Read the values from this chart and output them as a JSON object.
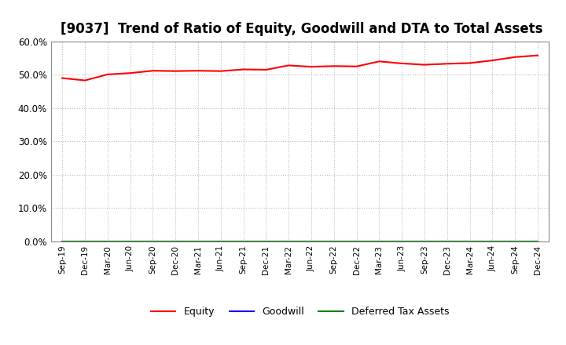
{
  "title": "[9037]  Trend of Ratio of Equity, Goodwill and DTA to Total Assets",
  "x_labels": [
    "Sep-19",
    "Dec-19",
    "Mar-20",
    "Jun-20",
    "Sep-20",
    "Dec-20",
    "Mar-21",
    "Jun-21",
    "Sep-21",
    "Dec-21",
    "Mar-22",
    "Jun-22",
    "Sep-22",
    "Dec-22",
    "Mar-23",
    "Jun-23",
    "Sep-23",
    "Dec-23",
    "Mar-24",
    "Jun-24",
    "Sep-24",
    "Dec-24"
  ],
  "equity": [
    49.0,
    48.3,
    50.1,
    50.5,
    51.2,
    51.1,
    51.2,
    51.1,
    51.6,
    51.5,
    52.8,
    52.4,
    52.6,
    52.5,
    54.0,
    53.4,
    53.0,
    53.3,
    53.5,
    54.3,
    55.3,
    55.8
  ],
  "goodwill": [
    0.0,
    0.0,
    0.0,
    0.0,
    0.0,
    0.0,
    0.0,
    0.0,
    0.0,
    0.0,
    0.0,
    0.0,
    0.0,
    0.0,
    0.0,
    0.0,
    0.0,
    0.0,
    0.0,
    0.0,
    0.0,
    0.0
  ],
  "dta": [
    0.0,
    0.0,
    0.0,
    0.0,
    0.0,
    0.0,
    0.0,
    0.0,
    0.0,
    0.0,
    0.0,
    0.0,
    0.0,
    0.0,
    0.0,
    0.0,
    0.0,
    0.0,
    0.0,
    0.0,
    0.0,
    0.0
  ],
  "equity_color": "#FF0000",
  "goodwill_color": "#0000FF",
  "dta_color": "#008000",
  "ylim": [
    0,
    60
  ],
  "yticks": [
    0,
    10,
    20,
    30,
    40,
    50,
    60
  ],
  "ytick_labels": [
    "0.0%",
    "10.0%",
    "20.0%",
    "30.0%",
    "40.0%",
    "50.0%",
    "60.0%"
  ],
  "background_color": "#FFFFFF",
  "plot_bg_color": "#FFFFFF",
  "grid_color": "#BBBBBB",
  "title_fontsize": 12,
  "legend_labels": [
    "Equity",
    "Goodwill",
    "Deferred Tax Assets"
  ]
}
